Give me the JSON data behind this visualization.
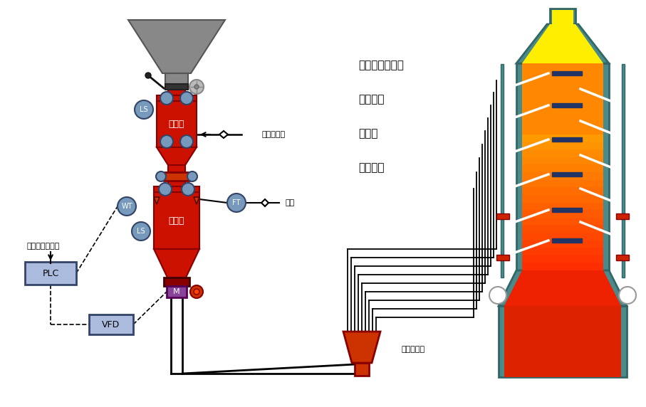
{
  "bg_color": "#ffffff",
  "furnace_labels": [
    "循环流化床锅炉",
    "炼铁高炉",
    "熔炼炉",
    "炼钢电炉"
  ],
  "label_PLC": "PLC",
  "label_VFD": "VFD",
  "label_WT": "WT",
  "label_LS": "LS",
  "label_FT": "FT",
  "label_tank1": "收料罐",
  "label_tank2": "喷吹罐",
  "label_fluidize": "流化加压气",
  "label_gas": "气源",
  "label_dist": "管路分配器",
  "label_M": "M",
  "label_feed": "给料量连续可调",
  "color_red": "#cc1100",
  "color_dark_red": "#880000",
  "color_gray_funnel": "#888888",
  "color_gray_dark": "#555555",
  "color_blue_circle": "#7799bb",
  "color_teal": "#4a8a8a",
  "color_teal_inner": "#5a9a9a",
  "color_yellow": "#ffee00",
  "color_orange": "#ff8800",
  "color_red_orange": "#ff3300",
  "color_dark_red2": "#dd2200",
  "color_purple": "#884499",
  "color_dark_blue_bar": "#223366",
  "color_plc_box": "#aabbdd",
  "color_black": "#000000",
  "color_white": "#ffffff",
  "color_valve": "#cc3300"
}
